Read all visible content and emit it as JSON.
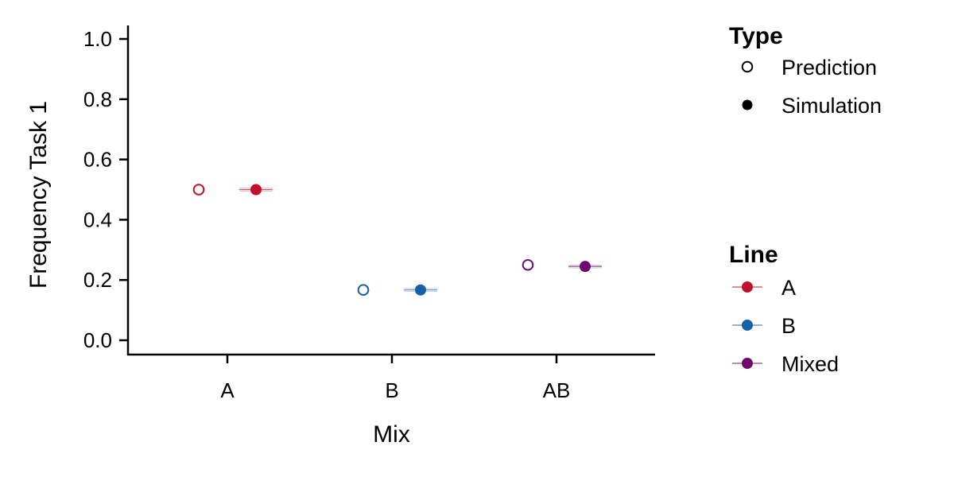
{
  "chart_data": {
    "type": "scatter",
    "title": "",
    "xlabel": "Mix",
    "ylabel": "Frequency Task 1",
    "categories": [
      "A",
      "B",
      "AB"
    ],
    "ylim": [
      0,
      1
    ],
    "yticks": [
      0.0,
      0.2,
      0.4,
      0.6,
      0.8,
      1.0
    ],
    "ytick_labels": [
      "0.0",
      "0.2",
      "0.4",
      "0.6",
      "0.8",
      "1.0"
    ],
    "grid": false,
    "points": [
      {
        "category": "A",
        "type": "Prediction",
        "line": "A",
        "y": 0.5
      },
      {
        "category": "A",
        "type": "Simulation",
        "line": "A",
        "y": 0.5,
        "err": [
          0.495,
          0.505
        ]
      },
      {
        "category": "B",
        "type": "Prediction",
        "line": "B",
        "y": 0.167
      },
      {
        "category": "B",
        "type": "Simulation",
        "line": "B",
        "y": 0.167,
        "err": [
          0.162,
          0.172
        ]
      },
      {
        "category": "AB",
        "type": "Prediction",
        "line": "Mixed",
        "y": 0.25
      },
      {
        "category": "AB",
        "type": "Simulation",
        "line": "Mixed",
        "y": 0.245,
        "err": [
          0.24,
          0.25
        ]
      }
    ],
    "legend": {
      "placement": "right",
      "type_title": "Type",
      "type_entries": [
        {
          "label": "Prediction",
          "shape": "open-circle"
        },
        {
          "label": "Simulation",
          "shape": "filled-circle"
        }
      ],
      "line_title": "Line",
      "line_entries": [
        {
          "label": "A",
          "color": "#c0102a"
        },
        {
          "label": "B",
          "color": "#1660a8"
        },
        {
          "label": "Mixed",
          "color": "#6d0a6d"
        }
      ]
    }
  }
}
